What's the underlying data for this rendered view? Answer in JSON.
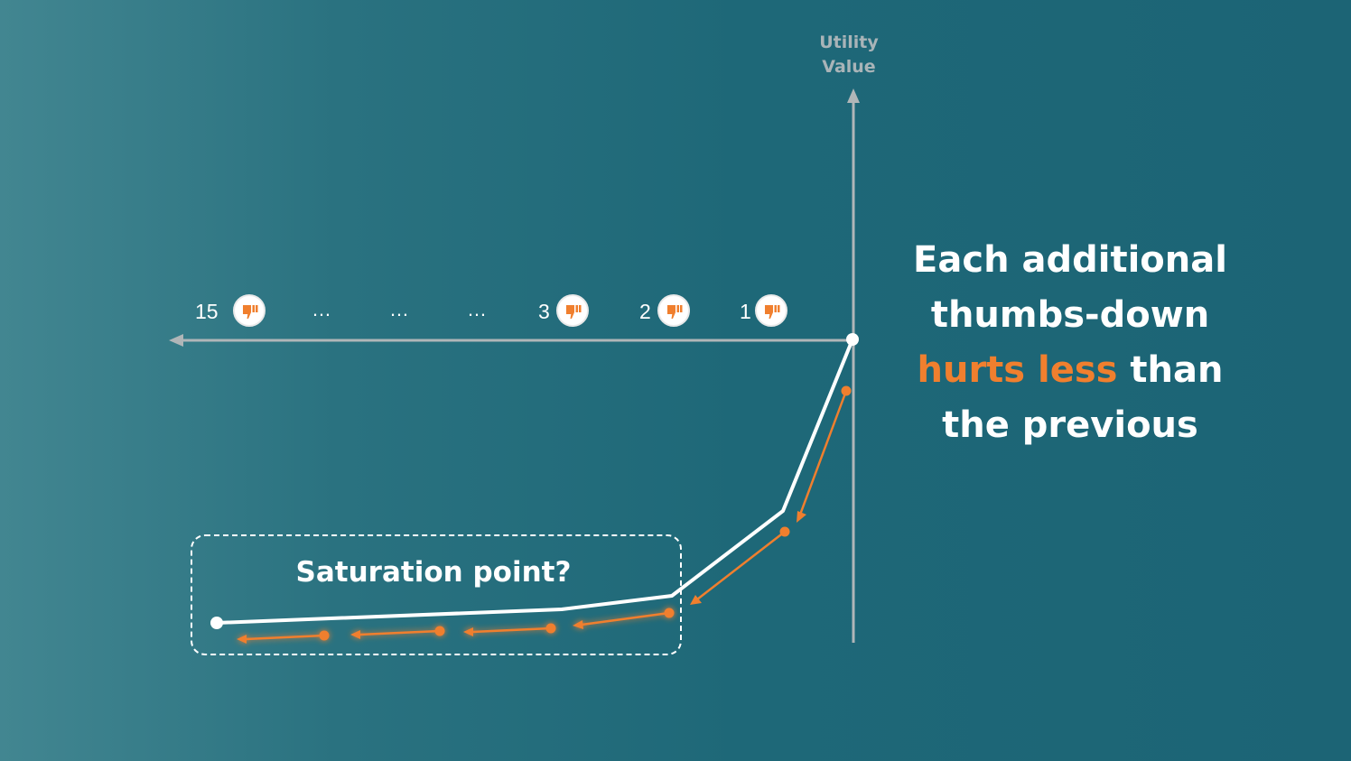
{
  "axis": {
    "y_label_line1": "Utility",
    "y_label_line2": "Value"
  },
  "markers": {
    "counts": [
      "15",
      "3",
      "2",
      "1"
    ],
    "ellipses": [
      "…",
      "…",
      "…"
    ],
    "icon": "thumbs-down-icon"
  },
  "headline": {
    "line1": "Each additional",
    "line2": "thumbs-down",
    "accent": "hurts less",
    "line3_rest": " than",
    "line4": "the previous"
  },
  "box_label": "Saturation point?",
  "colors": {
    "accent": "#f07f2e",
    "axis": "#b0b6b8",
    "curve": "#ffffff",
    "background_dark": "#1c6475",
    "background_light": "#428691"
  }
}
